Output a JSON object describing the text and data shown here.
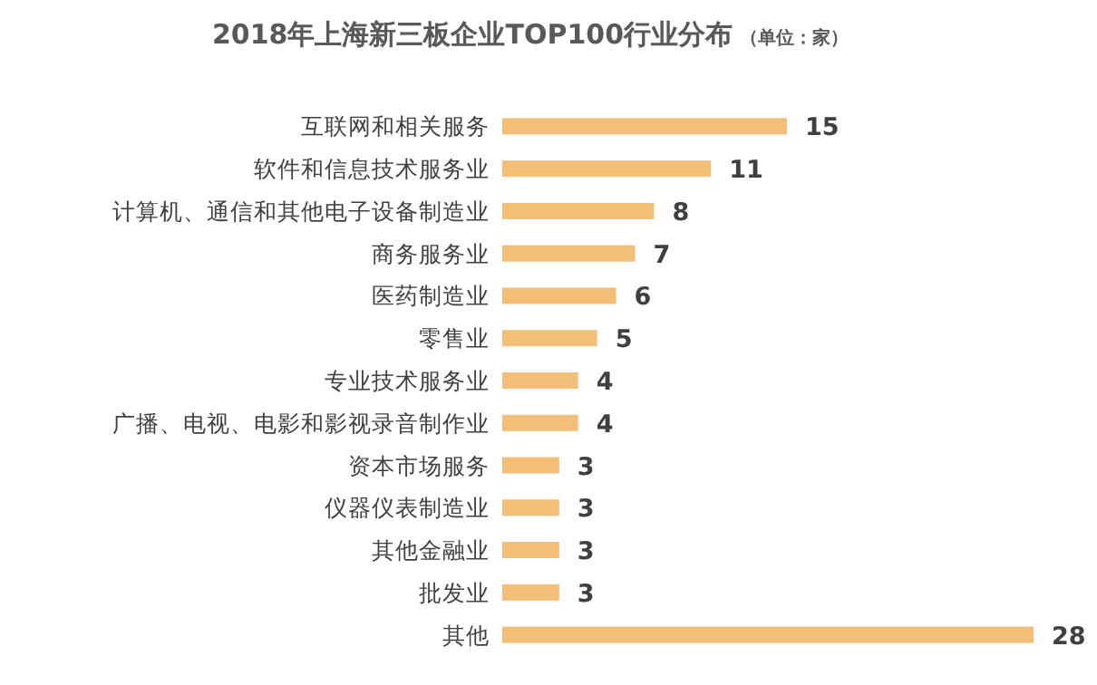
{
  "chart_data": {
    "type": "bar",
    "orientation": "horizontal",
    "title": "2018年上海新三板企业TOP100行业分布",
    "subtitle": "（单位：家）",
    "categories": [
      "互联网和相关服务",
      "软件和信息技术服务业",
      "计算机、通信和其他电子设备制造业",
      "商务服务业",
      "医药制造业",
      "零售业",
      "专业技术服务业",
      "广播、电视、电影和影视录音制作业",
      "资本市场服务",
      "仪器仪表制造业",
      "其他金融业",
      "批发业",
      "其他"
    ],
    "values": [
      15,
      11,
      8,
      7,
      6,
      5,
      4,
      4,
      3,
      3,
      3,
      3,
      28
    ],
    "color": "#f2be78",
    "data_labels": true
  }
}
